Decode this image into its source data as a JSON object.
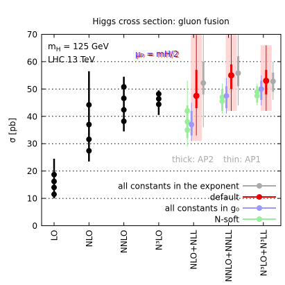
{
  "chart_data": {
    "type": "scatter",
    "title": "Higgs cross section: gluon fusion",
    "ylabel": "σ [pb]",
    "ylim": [
      0,
      70
    ],
    "yticks": [
      0,
      10,
      20,
      30,
      40,
      50,
      60,
      70
    ],
    "categories": [
      "LO",
      "NLO",
      "NNLO",
      "N³LO",
      "NLO+NLL",
      "NNLO+NNLL",
      "N³LO+N³LL"
    ],
    "annotations": {
      "mass": "m",
      "mass_sub": "H",
      "mass_value": " = 125 GeV",
      "collider": "LHC 13 TeV",
      "mu_blue": "μ₀ = mH/2",
      "mu_red": "μ₀ = mH/2",
      "thick": "thick: AP2",
      "thin": "thin: AP1"
    },
    "legend": {
      "placement": "bottom-right",
      "entries": [
        {
          "label": "all constants in the exponent",
          "color": "#aaaaaa"
        },
        {
          "label": "default",
          "color": "#ee0000"
        },
        {
          "label": "all constants in g₀",
          "color": "#9999ff"
        },
        {
          "label": "N-soft",
          "color": "#99ee99"
        }
      ]
    },
    "fixed_order": [
      {
        "x": 1,
        "points": [
          11.5,
          14.0,
          16.2,
          18.7
        ],
        "err": [
          10.0,
          24.5
        ],
        "color": "#000000"
      },
      {
        "x": 2,
        "points": [
          27.4,
          31.6,
          37.0,
          44.2
        ],
        "err": [
          23.5,
          56.5
        ],
        "color": "#000000"
      },
      {
        "x": 3,
        "points": [
          38.2,
          42.4,
          46.6,
          50.8
        ],
        "err": [
          34.5,
          54.5
        ],
        "color": "#000000"
      },
      {
        "x": 4,
        "points": [
          44.4,
          46.4,
          48.2
        ],
        "err": [
          40.5,
          49.5
        ],
        "color": "#000000"
      }
    ],
    "resummed": [
      {
        "x": 5,
        "default": {
          "center": 47.5,
          "thick": [
            43.0,
            57.0
          ],
          "thin": [
            33.0,
            70.0
          ],
          "band": [
            31.0,
            70.0
          ]
        },
        "exponent": {
          "center": 52.2,
          "thick": [
            48.0,
            60.0
          ],
          "thin": [
            36.0,
            70.0
          ]
        },
        "g0": {
          "center": 37.0,
          "thick": [
            33.0,
            42.0
          ],
          "thin": [
            31.0,
            45.0
          ]
        },
        "nsoft": {
          "points": [
            35.0,
            38.0,
            42.0
          ],
          "thick": [
            32.0,
            44.0
          ],
          "thin": [
            29.0,
            53.0
          ]
        }
      },
      {
        "x": 6,
        "default": {
          "center": 55.0,
          "thick": [
            50.0,
            59.0
          ],
          "thin": [
            42.0,
            70.0
          ],
          "band": [
            42.0,
            70.0
          ]
        },
        "exponent": {
          "center": 55.8,
          "thick": [
            51.0,
            62.0
          ],
          "thin": [
            44.0,
            70.0
          ]
        },
        "g0": {
          "center": 47.5,
          "thick": [
            43.0,
            51.0
          ],
          "thin": [
            41.0,
            54.0
          ]
        },
        "nsoft": {
          "points": [
            45.5,
            47.0
          ],
          "thick": [
            42.0,
            50.0
          ],
          "thin": [
            41.0,
            52.0
          ]
        }
      },
      {
        "x": 7,
        "default": {
          "center": 53.0,
          "thick": [
            48.0,
            57.0
          ],
          "thin": [
            42.0,
            66.0
          ],
          "band": [
            42.0,
            66.0
          ]
        },
        "exponent": {
          "center": 52.8,
          "thick": [
            49.0,
            56.0
          ],
          "thin": [
            46.0,
            60.0
          ]
        },
        "g0": {
          "center": 50.0,
          "thick": [
            46.0,
            53.0
          ],
          "thin": [
            44.0,
            55.0
          ]
        },
        "nsoft": {
          "points": [
            47.5,
            49.0
          ],
          "thick": [
            45.0,
            51.0
          ],
          "thin": [
            44.0,
            52.0
          ]
        }
      }
    ],
    "grid": "horizontal dotted"
  }
}
